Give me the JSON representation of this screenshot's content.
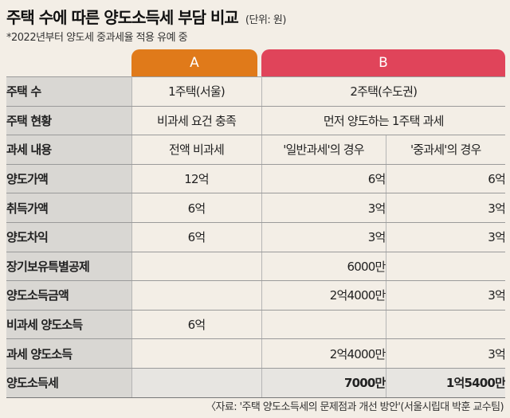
{
  "title": "주택 수에 따른 양도소득세 부담 비교",
  "unit": "(단위: 원)",
  "subtitle": "*2022년부터 양도세 중과세율 적용 유예 중",
  "tabs": {
    "a": "A",
    "b": "B"
  },
  "rows": {
    "house_count": {
      "label": "주택 수",
      "a": "1주택(서울)",
      "b": "2주택(수도권)"
    },
    "house_status": {
      "label": "주택 현황",
      "a": "비과세 요건 충족",
      "b": "먼저 양도하는 1주택 과세"
    },
    "tax_content": {
      "label": "과세 내용",
      "a": "전액 비과세",
      "b1": "'일반과세'의 경우",
      "b2": "'중과세'의 경우"
    },
    "transfer_value": {
      "label": "양도가액",
      "a": "12억",
      "b1": "6억",
      "b2": "6억"
    },
    "acquisition_value": {
      "label": "취득가액",
      "a": "6억",
      "b1": "3억",
      "b2": "3억"
    },
    "transfer_gain": {
      "label": "양도차익",
      "a": "6억",
      "b1": "3억",
      "b2": "3억"
    },
    "long_term_deduction": {
      "label": "장기보유특별공제",
      "a": "",
      "b1": "6000만",
      "b2": ""
    },
    "transfer_income": {
      "label": "양도소득금액",
      "a": "",
      "b1": "2억4000만",
      "b2": "3억"
    },
    "nontaxable_income": {
      "label": "비과세 양도소득",
      "a": "6억",
      "b1": "",
      "b2": ""
    },
    "taxable_income": {
      "label": "과세 양도소득",
      "a": "",
      "b1": "2억4000만",
      "b2": "3억"
    },
    "transfer_tax": {
      "label": "양도소득세",
      "a": "",
      "b1": "7000만",
      "b2": "1억5400만"
    }
  },
  "source": "〈자료: '주택 양도소득세의 문제점과 개선 방안'(서울시립대 박훈 교수팀)",
  "colors": {
    "tab_a": "#e07a1a",
    "tab_b": "#e0445a",
    "label_bg": "#d9d7d3",
    "page_bg": "#f3eee6"
  }
}
